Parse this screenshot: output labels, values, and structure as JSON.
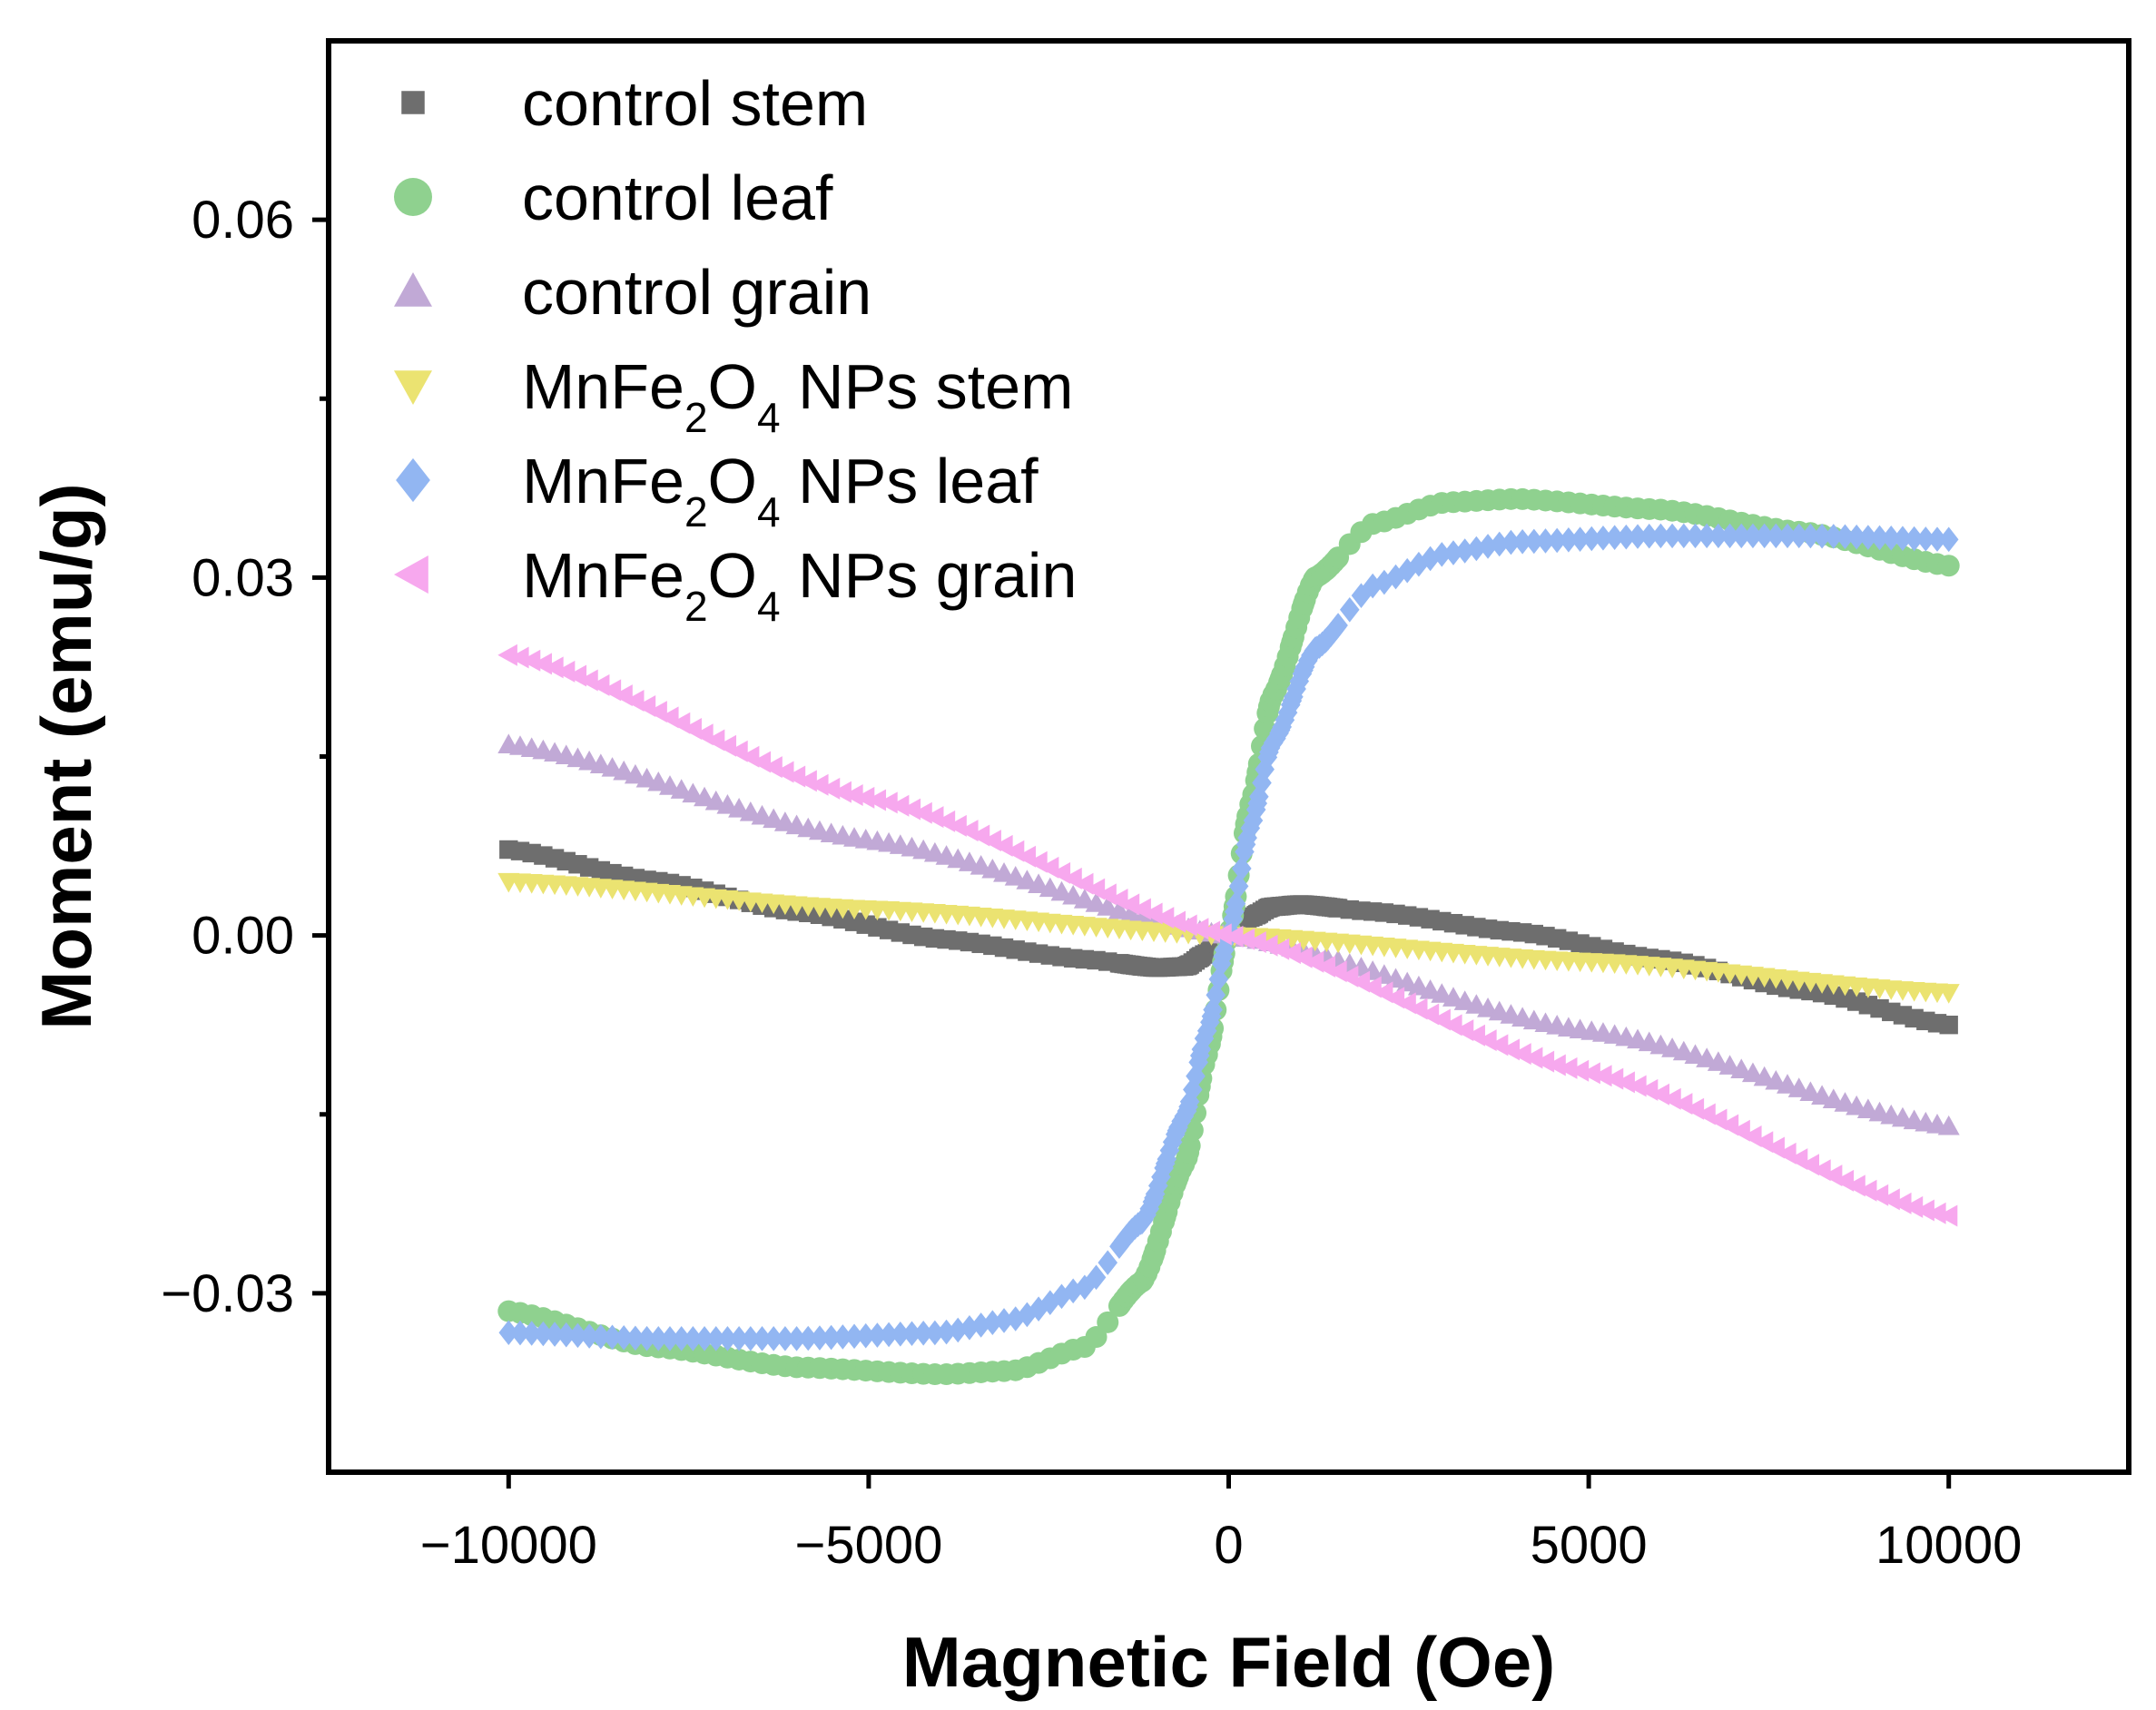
{
  "chart_data": {
    "type": "scatter",
    "title": "",
    "xlabel": "Magnetic Field (Oe)",
    "ylabel": "Moment (emu/g)",
    "xlim": [
      -12500,
      12500
    ],
    "ylim": [
      -0.045,
      0.075
    ],
    "xticks": [
      -10000,
      -5000,
      0,
      5000,
      10000
    ],
    "xtick_labels": [
      "−10000",
      "−5000",
      "0",
      "5000",
      "10000"
    ],
    "yticks": [
      -0.03,
      0.0,
      0.03,
      0.06
    ],
    "ytick_labels": [
      "−0.03",
      "0.00",
      "0.03",
      "0.06"
    ],
    "y_minor_ticks": [
      -0.015,
      0.015,
      0.045
    ],
    "grid": false,
    "legend_position": "top-left",
    "series": [
      {
        "name": "control stem",
        "legend_parts": [
          {
            "text": "control stem",
            "sub": false
          }
        ],
        "marker": "square",
        "color": "#6e6e6e",
        "points": [
          [
            -10000,
            0.0072
          ],
          [
            -8000,
            0.0046
          ],
          [
            -6000,
            0.002
          ],
          [
            -4000,
            -0.0003
          ],
          [
            -2000,
            -0.002
          ],
          [
            -1000,
            -0.0027
          ],
          [
            -600,
            -0.0026
          ],
          [
            -300,
            -0.0015
          ],
          [
            0,
            0.0
          ],
          [
            300,
            0.0015
          ],
          [
            600,
            0.0024
          ],
          [
            1000,
            0.0026
          ],
          [
            2000,
            0.002
          ],
          [
            4000,
            0.0003
          ],
          [
            6000,
            -0.002
          ],
          [
            8000,
            -0.0046
          ],
          [
            10000,
            -0.0075
          ]
        ]
      },
      {
        "name": "control leaf",
        "legend_parts": [
          {
            "text": "control leaf",
            "sub": false
          }
        ],
        "marker": "circle",
        "color": "#8fd18f",
        "points": [
          [
            -10000,
            -0.0315
          ],
          [
            -8000,
            -0.0345
          ],
          [
            -6000,
            -0.0362
          ],
          [
            -4000,
            -0.0368
          ],
          [
            -3000,
            -0.0365
          ],
          [
            -2000,
            -0.0345
          ],
          [
            -1200,
            -0.029
          ],
          [
            -600,
            -0.019
          ],
          [
            -300,
            -0.01
          ],
          [
            0,
            0.0
          ],
          [
            300,
            0.011
          ],
          [
            600,
            0.02
          ],
          [
            1200,
            0.03
          ],
          [
            2000,
            0.0345
          ],
          [
            3000,
            0.0363
          ],
          [
            4000,
            0.0366
          ],
          [
            6000,
            0.0357
          ],
          [
            8000,
            0.0338
          ],
          [
            10000,
            0.031
          ]
        ]
      },
      {
        "name": "control grain",
        "legend_parts": [
          {
            "text": "control grain",
            "sub": false
          }
        ],
        "marker": "triangle-up",
        "color": "#c1a9d6",
        "points": [
          [
            -10000,
            0.016
          ],
          [
            -5000,
            0.008
          ],
          [
            0,
            0.0
          ],
          [
            5000,
            -0.008
          ],
          [
            10000,
            -0.016
          ]
        ]
      },
      {
        "name": "MnFe2O4 NPs stem",
        "legend_parts": [
          {
            "text": "MnFe",
            "sub": false
          },
          {
            "text": "2",
            "sub": true
          },
          {
            "text": "O",
            "sub": false
          },
          {
            "text": "4",
            "sub": true
          },
          {
            "text": " NPs stem",
            "sub": false
          }
        ],
        "marker": "triangle-down",
        "color": "#ebe371",
        "points": [
          [
            -10000,
            0.0045
          ],
          [
            -5000,
            0.0022
          ],
          [
            0,
            0.0
          ],
          [
            5000,
            -0.0022
          ],
          [
            10000,
            -0.0048
          ]
        ]
      },
      {
        "name": "MnFe2O4 NPs leaf",
        "legend_parts": [
          {
            "text": "MnFe",
            "sub": false
          },
          {
            "text": "2",
            "sub": true
          },
          {
            "text": "O",
            "sub": false
          },
          {
            "text": "4",
            "sub": true
          },
          {
            "text": " NPs leaf",
            "sub": false
          }
        ],
        "marker": "diamond",
        "color": "#92b6f2",
        "points": [
          [
            -10000,
            -0.0333
          ],
          [
            -8000,
            -0.0338
          ],
          [
            -6000,
            -0.0338
          ],
          [
            -4000,
            -0.0333
          ],
          [
            -3000,
            -0.0322
          ],
          [
            -2000,
            -0.0295
          ],
          [
            -1200,
            -0.024
          ],
          [
            -600,
            -0.015
          ],
          [
            -300,
            -0.008
          ],
          [
            0,
            0.0
          ],
          [
            300,
            0.009
          ],
          [
            600,
            0.016
          ],
          [
            1200,
            0.024
          ],
          [
            2000,
            0.0293
          ],
          [
            3000,
            0.032
          ],
          [
            4000,
            0.033
          ],
          [
            6000,
            0.0335
          ],
          [
            8000,
            0.0335
          ],
          [
            10000,
            0.0332
          ]
        ]
      },
      {
        "name": "MnFe2O4 NPs grain",
        "legend_parts": [
          {
            "text": "MnFe",
            "sub": false
          },
          {
            "text": "2",
            "sub": true
          },
          {
            "text": "O",
            "sub": false
          },
          {
            "text": "4",
            "sub": true
          },
          {
            "text": " NPs grain",
            "sub": false
          }
        ],
        "marker": "triangle-left",
        "color": "#f7a8ee",
        "points": [
          [
            -10000,
            0.0235
          ],
          [
            -5000,
            0.0115
          ],
          [
            0,
            0.0
          ],
          [
            5000,
            -0.0115
          ],
          [
            10000,
            -0.0235
          ]
        ]
      }
    ]
  }
}
